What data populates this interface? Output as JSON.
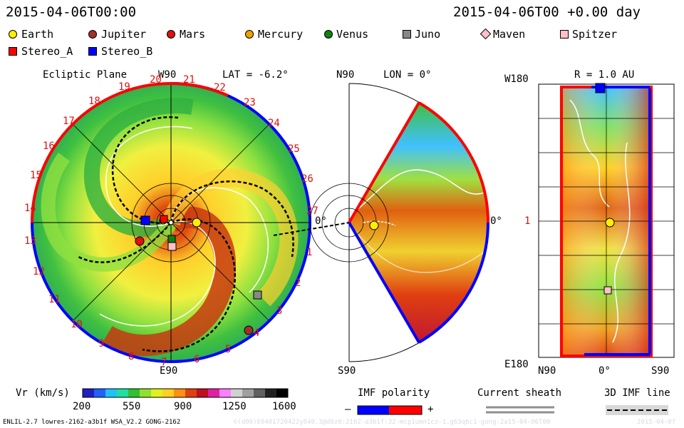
{
  "header": {
    "left_time": "2015-04-06T00:00",
    "right_time": "2015-04-06T00 +0.00 day"
  },
  "legend": {
    "bodies": [
      {
        "name": "Earth",
        "shape": "circle",
        "color": "#ffee00"
      },
      {
        "name": "Jupiter",
        "shape": "circle",
        "color": "#a0302a"
      },
      {
        "name": "Mars",
        "shape": "circle",
        "color": "#e01010"
      },
      {
        "name": "Mercury",
        "shape": "circle",
        "color": "#f0a000"
      },
      {
        "name": "Venus",
        "shape": "circle",
        "color": "#108010"
      },
      {
        "name": "Juno",
        "shape": "square",
        "color": "#888888"
      },
      {
        "name": "Maven",
        "shape": "diamond",
        "color": "#ffc0c8"
      },
      {
        "name": "Spitzer",
        "shape": "square",
        "color": "#ffc0c8"
      },
      {
        "name": "Stereo_A",
        "shape": "square",
        "color": "#ff0000"
      },
      {
        "name": "Stereo_B",
        "shape": "square",
        "color": "#0000ff"
      }
    ]
  },
  "ecliptic": {
    "title": "Ecliptic Plane",
    "top_label": "W90",
    "lat_label": "LAT = -6.2°",
    "bottom_label": "E90",
    "right_label": "0°",
    "ring_numbers": [
      "20",
      "21",
      "22",
      "23",
      "24",
      "25",
      "26",
      "27",
      "1",
      "2",
      "3",
      "4",
      "5",
      "6",
      "7",
      "8",
      "9",
      "10",
      "11",
      "12",
      "13",
      "14",
      "15",
      "16",
      "17",
      "18",
      "19"
    ]
  },
  "meridional": {
    "top_label": "N90",
    "lon_label": "LON = 0°",
    "bottom_label": "S90",
    "right_label": "0°"
  },
  "radial": {
    "title": "R = 1.0 AU",
    "top_left": "W180",
    "mid_left": "1",
    "bottom_left": "E180",
    "x_labels": [
      "N90",
      "0°",
      "S90"
    ]
  },
  "colorbar": {
    "title": "Vr (km/s)",
    "ticks": [
      "200",
      "550",
      "900",
      "1250",
      "1600"
    ],
    "colors": [
      "#2020c0",
      "#2060ff",
      "#20c0ff",
      "#20e0a0",
      "#30c030",
      "#90e030",
      "#e0f020",
      "#ffd020",
      "#ff9010",
      "#e04010",
      "#c01020",
      "#e020a0",
      "#ff80ff",
      "#d0d0d0",
      "#a0a0a0",
      "#606060",
      "#202020",
      "#000000"
    ]
  },
  "imf": {
    "title": "IMF polarity",
    "minus": "–",
    "plus": "+",
    "neg_color": "#0000ff",
    "pos_color": "#ff0000"
  },
  "sheath": {
    "title": "Current sheath"
  },
  "imfline": {
    "title": "3D IMF line"
  },
  "footer": {
    "model": "ENLIL-2.7 lowres-2162-a3b1f WSA_V2.2 GONG-2162",
    "ghost": "©(d00)E0401720422y840.3@d0z0:2162-a3b1f:32-mcp1umn1cz-1.g63q6c1-gong-2a15-04-06T00",
    "ghost_right": "2015-04-07"
  }
}
